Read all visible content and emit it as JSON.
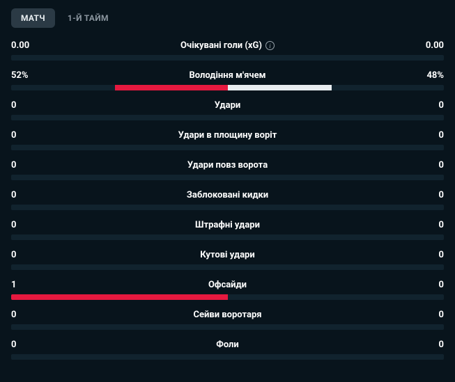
{
  "colors": {
    "background": "#08141c",
    "track": "#11232e",
    "home_bar": "#e6193f",
    "away_bar": "#e8edf0",
    "tab_active_bg": "#2b3a45",
    "tab_inactive_text": "#8a959e",
    "text": "#ffffff"
  },
  "tabs": [
    {
      "label": "МАТЧ",
      "active": true
    },
    {
      "label": "1-Й ТАЙМ",
      "active": false
    }
  ],
  "stats": [
    {
      "label": "Очікувані голи (xG)",
      "home": "0.00",
      "away": "0.00",
      "home_pct": 0,
      "away_pct": 0,
      "info": true
    },
    {
      "label": "Володіння м'ячем",
      "home": "52%",
      "away": "48%",
      "home_pct": 52,
      "away_pct": 48,
      "info": false
    },
    {
      "label": "Удари",
      "home": "0",
      "away": "0",
      "home_pct": 0,
      "away_pct": 0,
      "info": false
    },
    {
      "label": "Удари в площину воріт",
      "home": "0",
      "away": "0",
      "home_pct": 0,
      "away_pct": 0,
      "info": false
    },
    {
      "label": "Удари повз ворота",
      "home": "0",
      "away": "0",
      "home_pct": 0,
      "away_pct": 0,
      "info": false
    },
    {
      "label": "Заблоковані кидки",
      "home": "0",
      "away": "0",
      "home_pct": 0,
      "away_pct": 0,
      "info": false
    },
    {
      "label": "Штрафні удари",
      "home": "0",
      "away": "0",
      "home_pct": 0,
      "away_pct": 0,
      "info": false
    },
    {
      "label": "Кутові удари",
      "home": "0",
      "away": "0",
      "home_pct": 0,
      "away_pct": 0,
      "info": false
    },
    {
      "label": "Офсайди",
      "home": "1",
      "away": "0",
      "home_pct": 100,
      "away_pct": 0,
      "info": false
    },
    {
      "label": "Сейви воротаря",
      "home": "0",
      "away": "0",
      "home_pct": 0,
      "away_pct": 0,
      "info": false
    },
    {
      "label": "Фоли",
      "home": "0",
      "away": "0",
      "home_pct": 0,
      "away_pct": 0,
      "info": false
    }
  ]
}
